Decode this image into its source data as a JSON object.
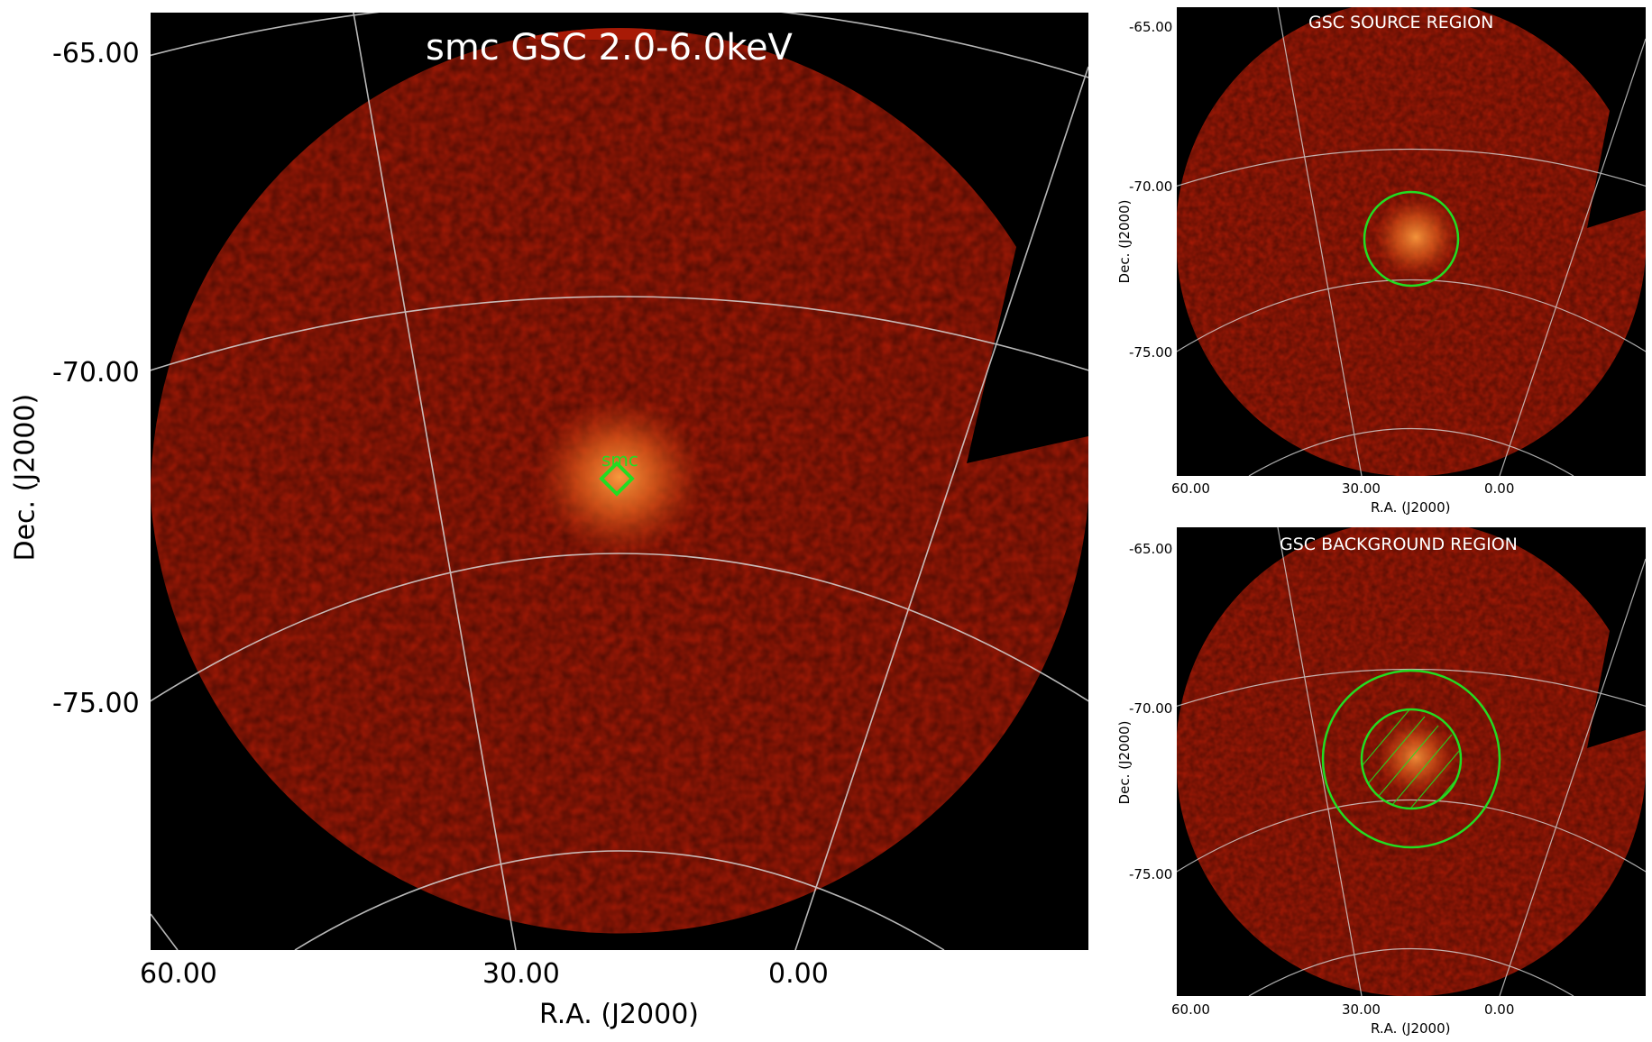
{
  "main": {
    "title": "smc GSC 2.0-6.0keV",
    "marker_label": "smc",
    "dec_ticks": [
      "-65.00",
      "-70.00",
      "-75.00"
    ],
    "ra_ticks": [
      "60.00",
      "30.00",
      "0.00"
    ],
    "xlabel": "R.A. (J2000)",
    "ylabel": "Dec. (J2000)"
  },
  "source": {
    "title": "GSC SOURCE REGION",
    "dec_ticks": [
      "-65.00",
      "-70.00",
      "-75.00"
    ],
    "ra_ticks": [
      "60.00",
      "30.00",
      "0.00"
    ],
    "xlabel": "R.A. (J2000)",
    "ylabel": "Dec. (J2000)"
  },
  "background": {
    "title": "GSC BACKGROUND REGION",
    "dec_ticks": [
      "-65.00",
      "-70.00",
      "-75.00"
    ],
    "ra_ticks": [
      "60.00",
      "30.00",
      "0.00"
    ],
    "xlabel": "R.A. (J2000)",
    "ylabel": "Dec. (J2000)"
  },
  "colors": {
    "sky": "#a81a06",
    "source_glow": "#f07a20",
    "region": "#22dd22",
    "grid": "#d8d8d8",
    "title_text": "#ffffff"
  }
}
